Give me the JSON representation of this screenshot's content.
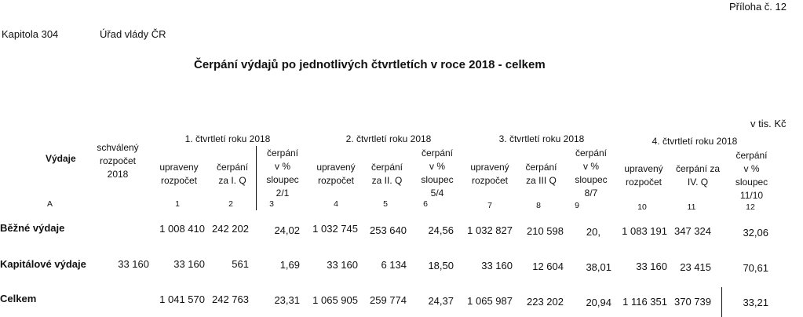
{
  "header": {
    "appendix": "Příloha č. 12",
    "chapter_label": "Kapitola 304",
    "chapter_name": "Úřad vlády ČR",
    "title": "Čerpání výdajů po jednotlivých čtvrtletích v roce 2018 - celkem",
    "unit": "v tis. Kč"
  },
  "table": {
    "col_vydaje": "Výdaje",
    "col_schvaleny": [
      "schválený",
      "rozpočet",
      "2018"
    ],
    "quarters": [
      {
        "title": "1. čtvrtletí roku 2018",
        "upraveny": [
          "upraveny",
          "rozpočet"
        ],
        "cerpani": [
          "čerpání",
          "za I. Q"
        ],
        "pct": [
          "čerpání",
          "v %",
          "sloupec",
          "2/1"
        ]
      },
      {
        "title": "2. čtvrtletí roku 2018",
        "upraveny": [
          "upravený",
          "rozpočet"
        ],
        "cerpani": [
          "čerpání",
          "za II. Q"
        ],
        "pct": [
          "čerpání",
          "v %",
          "sloupec",
          "5/4"
        ]
      },
      {
        "title": "3. čtvrtletí roku 2018",
        "upraveny": [
          "upravený",
          "rozpočet"
        ],
        "cerpani": [
          "čerpání",
          "za III Q"
        ],
        "pct": [
          "čerpání",
          "v %",
          "sloupec",
          "8/7"
        ]
      },
      {
        "title": "4. čtvrtletí roku 2018",
        "upraveny": [
          "upravený",
          "rozpočet"
        ],
        "cerpani": [
          "čerpání za",
          "IV. Q"
        ],
        "pct": [
          "čerpání",
          "v %",
          "sloupec",
          "11/10"
        ]
      }
    ],
    "col_numbers": [
      "A",
      "1",
      "2",
      "3",
      "4",
      "5",
      "6",
      "7",
      "8",
      "9",
      "10",
      "11",
      "12"
    ],
    "rows": [
      {
        "label": "Běžné výdaje",
        "schvaleny": "",
        "cells": [
          "1 008 410",
          "242 202",
          "24,02",
          "1 032 745",
          "253 640",
          "24,56",
          "1 032 827",
          "210 598",
          "20,",
          "1 083 191",
          "347 324",
          "32,06"
        ]
      },
      {
        "label": "Kapitálové výdaje",
        "schvaleny": "33 160",
        "cells": [
          "33 160",
          "561",
          "1,69",
          "33 160",
          "6 134",
          "18,50",
          "33 160",
          "12 604",
          "38,01",
          "33 160",
          "23 415",
          "70,61"
        ]
      },
      {
        "label": "Celkem",
        "schvaleny": "",
        "cells": [
          "1 041 570",
          "242 763",
          "23,31",
          "1 065 905",
          "259 774",
          "24,37",
          "1 065 987",
          "223 202",
          "20,94",
          "1 116 351",
          "370 739",
          "33,21"
        ]
      }
    ]
  }
}
